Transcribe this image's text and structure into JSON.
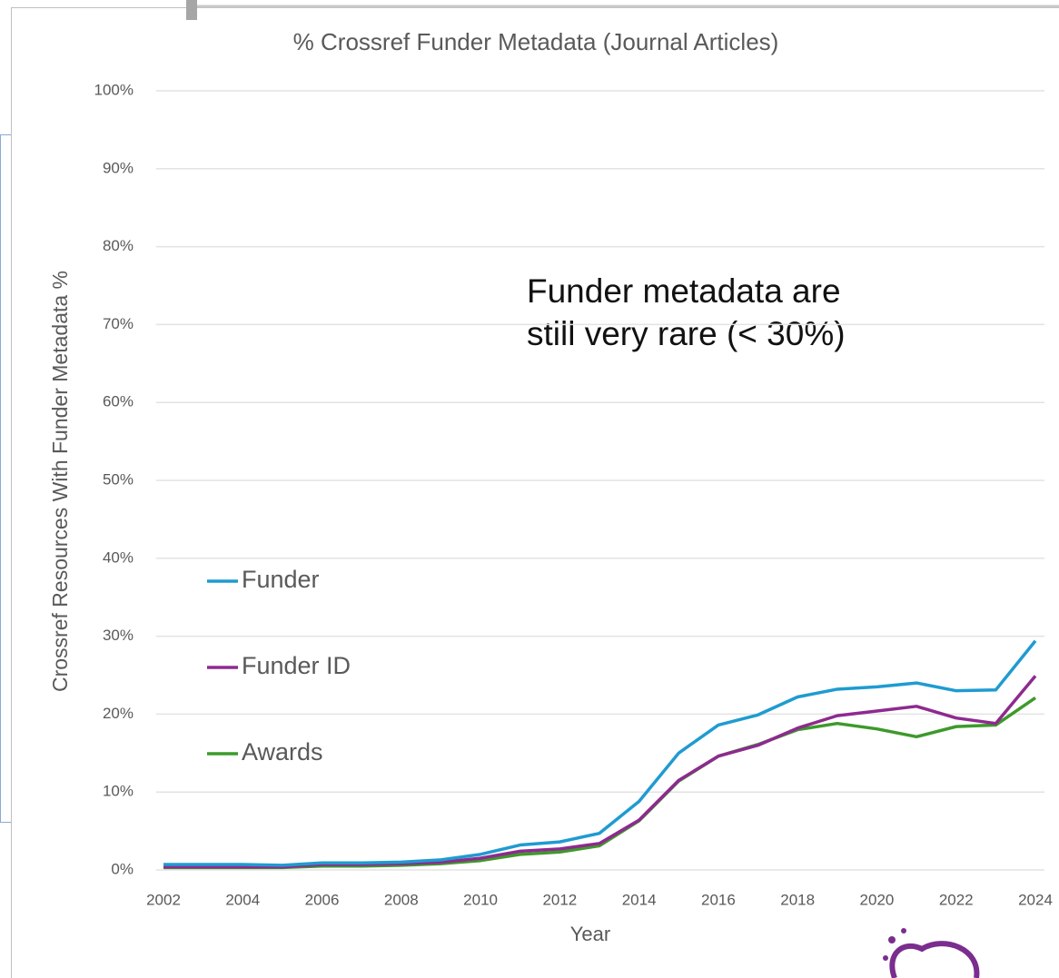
{
  "chart_data": {
    "type": "line",
    "title": "% Crossref Funder Metadata (Journal Articles)",
    "x_label": "Year",
    "y_label": "Crossref Resources With Funder Metadata %",
    "annotation": [
      "Funder metadata are",
      "still very rare (< 30%)"
    ],
    "x": [
      2002,
      2003,
      2004,
      2005,
      2006,
      2007,
      2008,
      2009,
      2010,
      2011,
      2012,
      2013,
      2014,
      2015,
      2016,
      2017,
      2018,
      2019,
      2020,
      2021,
      2022,
      2023,
      2024
    ],
    "series": [
      {
        "name": "Funder",
        "color": "#1f9bd1",
        "values": [
          0.7,
          0.7,
          0.7,
          0.6,
          0.9,
          0.9,
          1.0,
          1.3,
          2.0,
          3.2,
          3.6,
          4.7,
          8.8,
          15.0,
          18.6,
          19.9,
          22.2,
          23.2,
          23.5,
          24.0,
          23.0,
          23.1,
          29.4
        ]
      },
      {
        "name": "Funder ID",
        "color": "#8e2a8f",
        "values": [
          0.4,
          0.4,
          0.4,
          0.4,
          0.7,
          0.7,
          0.8,
          1.0,
          1.5,
          2.4,
          2.7,
          3.4,
          6.4,
          11.5,
          14.6,
          16.0,
          18.2,
          19.8,
          20.4,
          21.0,
          19.5,
          18.8,
          24.9
        ]
      },
      {
        "name": "Awards",
        "color": "#3d9a2a",
        "values": [
          0.3,
          0.3,
          0.3,
          0.3,
          0.5,
          0.5,
          0.6,
          0.8,
          1.2,
          2.0,
          2.3,
          3.1,
          6.3,
          11.4,
          14.6,
          16.1,
          18.0,
          18.8,
          18.1,
          17.1,
          18.4,
          18.6,
          22.1
        ]
      }
    ],
    "xlim": [
      2002,
      2024
    ],
    "xticks": [
      2002,
      2004,
      2006,
      2008,
      2010,
      2012,
      2014,
      2016,
      2018,
      2020,
      2022,
      2024
    ],
    "ylim": [
      0,
      100
    ],
    "yticks": [
      {
        "value": 0,
        "label": "0%"
      },
      {
        "value": 10,
        "label": "10%"
      },
      {
        "value": 20,
        "label": "20%"
      },
      {
        "value": 30,
        "label": "30%"
      },
      {
        "value": 40,
        "label": "40%"
      },
      {
        "value": 50,
        "label": "50%"
      },
      {
        "value": 60,
        "label": "60%"
      },
      {
        "value": 70,
        "label": "70%"
      },
      {
        "value": 80,
        "label": "80%"
      },
      {
        "value": 90,
        "label": "90%"
      },
      {
        "value": 100,
        "label": "100%"
      }
    ],
    "grid": true
  }
}
